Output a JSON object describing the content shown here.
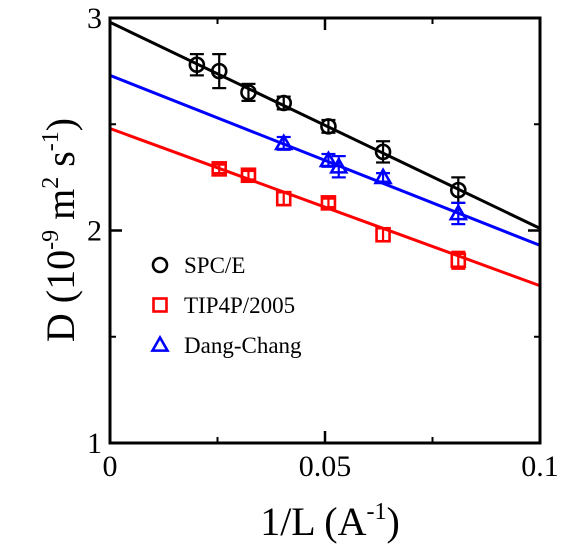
{
  "chart_data": {
    "type": "scatter",
    "xlabel": {
      "main": "1/L (A",
      "sup": "-1",
      "end": ")"
    },
    "ylabel": {
      "pre": "D (10",
      "sup1": "-9",
      "mid": " m",
      "sup2": "2",
      "mid2": " s",
      "sup3": "-1",
      "end": ")"
    },
    "xlim": [
      0,
      0.1
    ],
    "ylim": [
      1,
      3
    ],
    "y_scale": "linear",
    "xticks": [
      0,
      0.05,
      0.1
    ],
    "xtick_labels": [
      "0",
      "0.05",
      "0.1"
    ],
    "yticks": [
      1,
      2,
      3
    ],
    "ytick_labels": [
      "1",
      "2",
      "3"
    ],
    "legend_position": "lower-left",
    "series": [
      {
        "name": "SPC/E",
        "marker": "circle",
        "color": "#000000",
        "x": [
          0.0202,
          0.0254,
          0.0322,
          0.0404,
          0.0508,
          0.0635,
          0.081
        ],
        "y": [
          2.78,
          2.75,
          2.65,
          2.6,
          2.49,
          2.37,
          2.19
        ],
        "yerr": [
          0.05,
          0.08,
          0.04,
          0.03,
          0.03,
          0.05,
          0.06
        ],
        "fit": [
          [
            0,
            2.98
          ],
          [
            0.1,
            2.01
          ]
        ]
      },
      {
        "name": "TIP4P/2005",
        "marker": "square",
        "color": "#ff0000",
        "x": [
          0.0254,
          0.0322,
          0.0404,
          0.0508,
          0.0635,
          0.081
        ],
        "y": [
          2.29,
          2.26,
          2.15,
          2.13,
          1.98,
          1.86
        ],
        "yerr": [
          0.02,
          0.02,
          0.03,
          0.02,
          0.03,
          0.04
        ],
        "fit": [
          [
            0,
            2.48
          ],
          [
            0.1,
            1.74
          ]
        ]
      },
      {
        "name": "Dang-Chang",
        "marker": "triangle",
        "color": "#0000ff",
        "x": [
          0.0404,
          0.0508,
          0.0532,
          0.0635,
          0.081
        ],
        "y": [
          2.41,
          2.33,
          2.3,
          2.25,
          2.08
        ],
        "yerr": [
          0.03,
          0.03,
          0.05,
          0.02,
          0.05
        ],
        "fit": [
          [
            0,
            2.73
          ],
          [
            0.1,
            1.93
          ]
        ]
      }
    ]
  }
}
